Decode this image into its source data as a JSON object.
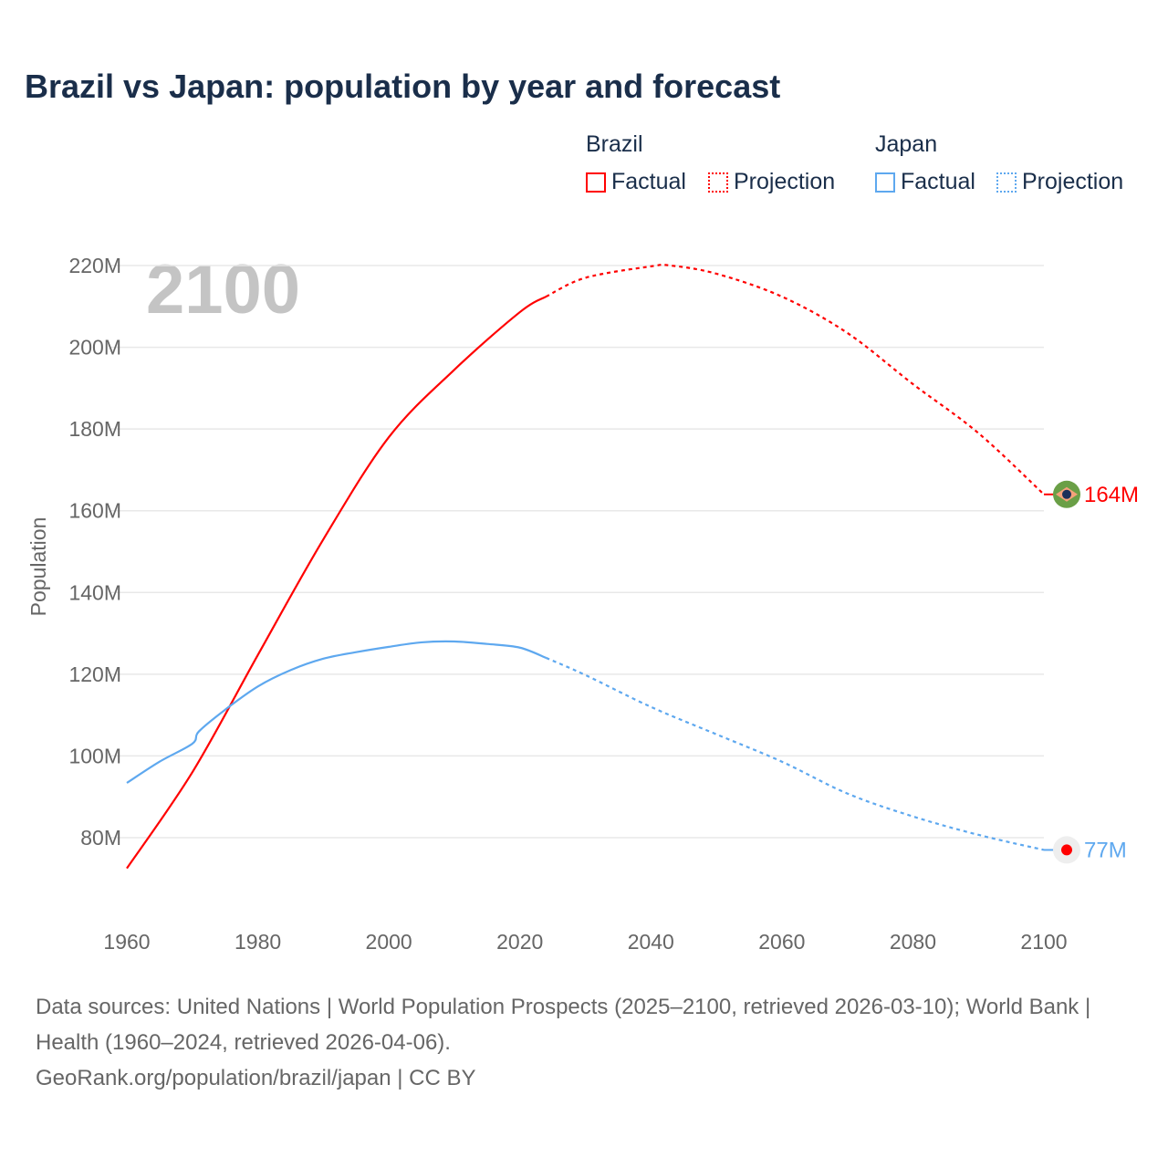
{
  "title": "Brazil vs Japan: population by year and forecast",
  "legend": {
    "groups": [
      {
        "name": "Brazil",
        "color": "#ff0000",
        "factual": "Factual",
        "projection": "Projection"
      },
      {
        "name": "Japan",
        "color": "#5ea8ef",
        "factual": "Factual",
        "projection": "Projection"
      }
    ]
  },
  "watermark_year": "2100",
  "footer": {
    "line1": "Data sources: United Nations | World Population Prospects (2025–2100, retrieved 2026-03-10); World Bank | Health (1960–2024, retrieved 2026-04-06).",
    "line2": "GeoRank.org/population/brazil/japan | CC BY"
  },
  "chart_data": {
    "type": "line",
    "ylabel": "Population",
    "ylim": [
      80,
      220
    ],
    "xlim": [
      1960,
      2100
    ],
    "yticks": [
      80,
      100,
      120,
      140,
      160,
      180,
      200,
      220
    ],
    "ytick_labels": [
      "80M",
      "100M",
      "120M",
      "140M",
      "160M",
      "180M",
      "200M",
      "220M"
    ],
    "xticks": [
      "1960",
      "1980",
      "2000",
      "2020",
      "2040",
      "2060",
      "2080",
      "2100"
    ],
    "series": [
      {
        "name": "Brazil",
        "color": "#ff0000",
        "end_label": "164M",
        "factual": {
          "x": [
            1960,
            1970,
            1980,
            1990,
            2000,
            2010,
            2020,
            2024
          ],
          "y": [
            72.5,
            96,
            124.7,
            153,
            178,
            194.5,
            208.6,
            212.4
          ]
        },
        "projection": {
          "x": [
            2024,
            2030,
            2040,
            2043,
            2050,
            2060,
            2070,
            2080,
            2090,
            2100
          ],
          "y": [
            212.4,
            217,
            219.8,
            220,
            218,
            212.4,
            203.5,
            191,
            179,
            164
          ]
        }
      },
      {
        "name": "Japan",
        "color": "#5ea8ef",
        "end_label": "77M",
        "factual": {
          "x": [
            1960,
            1965,
            1970,
            1971,
            1975,
            1980,
            1985,
            1990,
            1995,
            2000,
            2005,
            2010,
            2015,
            2020,
            2024
          ],
          "y": [
            93.4,
            98.6,
            103,
            106,
            111.3,
            117,
            121,
            123.8,
            125.4,
            126.7,
            127.8,
            128,
            127.4,
            126.5,
            124
          ]
        },
        "projection": {
          "x": [
            2024,
            2030,
            2040,
            2050,
            2060,
            2070,
            2080,
            2090,
            2100
          ],
          "y": [
            124,
            119.8,
            112,
            105.3,
            98.6,
            90.8,
            85.2,
            80.7,
            77
          ]
        }
      }
    ]
  }
}
